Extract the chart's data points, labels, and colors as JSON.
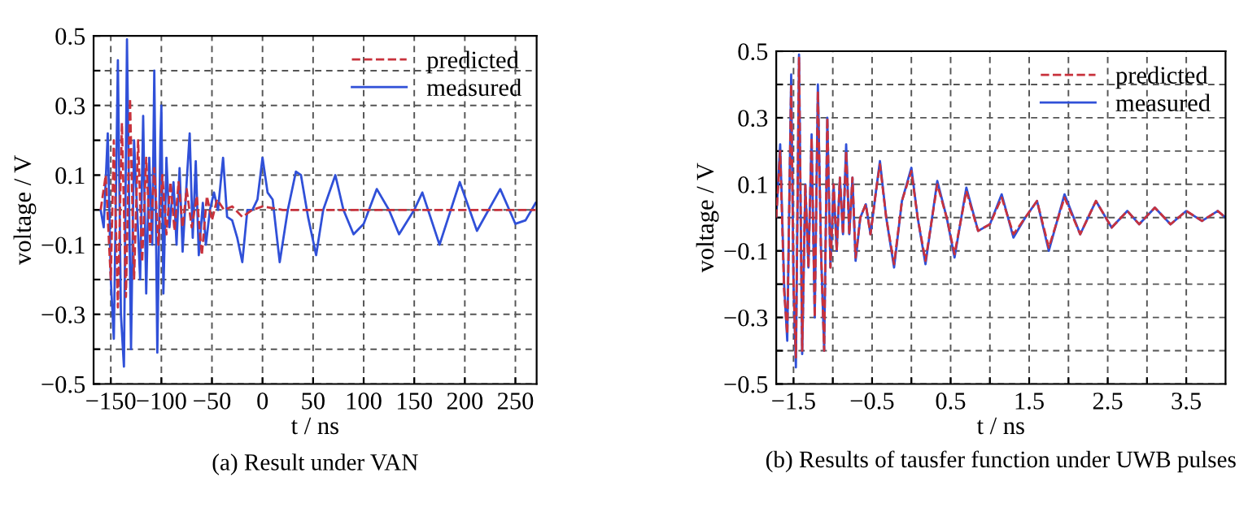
{
  "chart_data": [
    {
      "type": "line",
      "title": "(a) Result under VAN",
      "xlabel": "t / ns",
      "ylabel": "voltage / V",
      "xlim": [
        -167,
        271
      ],
      "xticks": [
        -150,
        -100,
        -50,
        0,
        50,
        100,
        150,
        200,
        250
      ],
      "ylim": [
        -0.5,
        0.5
      ],
      "yticks": [
        -0.5,
        {
          "value": -0.4,
          "label": null
        },
        -0.3,
        {
          "value": -0.2,
          "label": null
        },
        -0.1,
        {
          "value": 0,
          "label": null
        },
        0.1,
        {
          "value": 0.2,
          "label": null
        },
        0.3,
        {
          "value": 0.4,
          "label": null
        },
        0.5
      ],
      "grid": true,
      "legend": "top right",
      "series": [
        {
          "name": "predicted",
          "color": "#c8323c",
          "line_style": "dashed",
          "x": [
            -160,
            -155,
            -150,
            -147,
            -143,
            -139,
            -135,
            -131,
            -127,
            -123,
            -119,
            -115,
            -111,
            -107,
            -103,
            -99,
            -95,
            -91,
            -87,
            -83,
            -79,
            -75,
            -70,
            -65,
            -60,
            -55,
            -50,
            -45,
            -38,
            -30,
            -20,
            -10,
            0,
            20,
            50,
            100,
            200,
            270
          ],
          "values": [
            0.0,
            0.1,
            -0.2,
            0.2,
            -0.28,
            0.25,
            -0.25,
            0.32,
            -0.2,
            0.2,
            -0.15,
            0.15,
            -0.1,
            0.12,
            -0.1,
            0.1,
            -0.07,
            0.08,
            -0.06,
            0.08,
            -0.05,
            0.06,
            -0.05,
            0.04,
            -0.13,
            0.04,
            -0.03,
            0.03,
            0.0,
            0.01,
            -0.02,
            0.0,
            0.01,
            0.0,
            0.0,
            0.0,
            0.0,
            0.0
          ]
        },
        {
          "name": "measured",
          "color": "#3050d8",
          "line_style": "solid",
          "x": [
            -160,
            -157,
            -153,
            -150,
            -147,
            -143,
            -140,
            -137,
            -134,
            -130,
            -127,
            -124,
            -121,
            -118,
            -115,
            -112,
            -109,
            -107,
            -104,
            -101,
            -100,
            -98,
            -95,
            -92,
            -88,
            -85,
            -82,
            -79,
            -75,
            -72,
            -69,
            -66,
            -63,
            -59,
            -56,
            -52,
            -48,
            -44,
            -39,
            -35,
            -30,
            -25,
            -20,
            -15,
            -10,
            -5,
            0,
            5,
            10,
            17,
            25,
            33,
            38,
            45,
            53,
            60,
            72,
            80,
            90,
            100,
            113,
            125,
            135,
            150,
            158,
            175,
            195,
            212,
            235,
            250,
            260,
            270
          ],
          "values": [
            0.0,
            -0.05,
            0.22,
            -0.2,
            -0.37,
            0.43,
            -0.3,
            -0.45,
            0.49,
            -0.4,
            0.2,
            0.0,
            -0.2,
            0.27,
            -0.24,
            0.15,
            -0.1,
            0.4,
            -0.41,
            0.2,
            0.3,
            -0.24,
            0.15,
            -0.05,
            0.08,
            -0.1,
            0.12,
            -0.12,
            0.08,
            0.22,
            -0.08,
            0.14,
            -0.13,
            0.02,
            -0.1,
            0.0,
            0.05,
            0.0,
            0.15,
            -0.02,
            -0.03,
            -0.08,
            -0.15,
            0.0,
            0.0,
            0.03,
            0.15,
            0.05,
            0.03,
            -0.15,
            0.0,
            0.11,
            0.1,
            -0.02,
            -0.13,
            0.0,
            0.1,
            0.0,
            -0.07,
            -0.04,
            0.06,
            0.0,
            -0.07,
            0.0,
            0.05,
            -0.1,
            0.08,
            -0.06,
            0.06,
            -0.04,
            -0.03,
            0.02
          ]
        }
      ]
    },
    {
      "type": "line",
      "title": "(b) Results of tausfer function under UWB pulses",
      "xlabel": "t / ns",
      "ylabel": "voltage / V",
      "xlim": [
        -1.72,
        4.0
      ],
      "xticks": [
        -1.5,
        {
          "value": -1.0,
          "label": null
        },
        -0.5,
        {
          "value": 0.0,
          "label": null
        },
        0.5,
        {
          "value": 1.0,
          "label": null
        },
        1.5,
        {
          "value": 2.0,
          "label": null
        },
        2.5,
        {
          "value": 3.0,
          "label": null
        },
        3.5
      ],
      "ylim": [
        -0.5,
        0.5
      ],
      "yticks": [
        -0.5,
        {
          "value": -0.4,
          "label": null
        },
        -0.3,
        {
          "value": -0.2,
          "label": null
        },
        -0.1,
        {
          "value": 0,
          "label": null
        },
        0.1,
        {
          "value": 0.2,
          "label": null
        },
        0.3,
        {
          "value": 0.4,
          "label": null
        },
        0.5
      ],
      "grid": true,
      "legend": "top right",
      "series": [
        {
          "name": "predicted",
          "color": "#c8323c",
          "line_style": "dashed",
          "x": [
            -1.72,
            -1.67,
            -1.62,
            -1.58,
            -1.53,
            -1.5,
            -1.47,
            -1.43,
            -1.39,
            -1.35,
            -1.31,
            -1.27,
            -1.23,
            -1.19,
            -1.15,
            -1.11,
            -1.07,
            -1.03,
            -0.99,
            -0.95,
            -0.91,
            -0.87,
            -0.83,
            -0.79,
            -0.75,
            -0.71,
            -0.65,
            -0.58,
            -0.52,
            -0.45,
            -0.4,
            -0.32,
            -0.22,
            -0.12,
            0.0,
            0.08,
            0.18,
            0.33,
            0.45,
            0.55,
            0.7,
            0.85,
            1.0,
            1.15,
            1.3,
            1.45,
            1.6,
            1.75,
            1.95,
            2.15,
            2.35,
            2.55,
            2.75,
            2.9,
            3.1,
            3.3,
            3.5,
            3.7,
            3.9,
            4.0
          ],
          "values": [
            0.0,
            0.2,
            -0.22,
            -0.35,
            0.4,
            -0.2,
            -0.42,
            0.48,
            -0.4,
            0.1,
            -0.15,
            0.24,
            -0.3,
            0.38,
            -0.1,
            -0.4,
            0.3,
            -0.15,
            0.1,
            -0.1,
            0.12,
            -0.05,
            0.2,
            -0.05,
            0.12,
            -0.12,
            0.0,
            0.04,
            -0.05,
            0.08,
            0.16,
            0.0,
            -0.14,
            0.05,
            0.14,
            0.0,
            -0.13,
            0.1,
            0.0,
            -0.11,
            0.08,
            -0.04,
            -0.02,
            0.06,
            -0.05,
            0.0,
            0.05,
            -0.09,
            0.06,
            -0.05,
            0.05,
            -0.03,
            0.02,
            -0.02,
            0.03,
            -0.02,
            0.02,
            -0.01,
            0.02,
            0.0
          ]
        },
        {
          "name": "measured",
          "color": "#3050d8",
          "line_style": "solid",
          "x": [
            -1.72,
            -1.67,
            -1.62,
            -1.58,
            -1.53,
            -1.5,
            -1.47,
            -1.43,
            -1.39,
            -1.35,
            -1.31,
            -1.27,
            -1.23,
            -1.19,
            -1.15,
            -1.11,
            -1.07,
            -1.03,
            -0.99,
            -0.95,
            -0.91,
            -0.87,
            -0.83,
            -0.79,
            -0.75,
            -0.71,
            -0.65,
            -0.58,
            -0.52,
            -0.45,
            -0.4,
            -0.32,
            -0.22,
            -0.12,
            0.0,
            0.08,
            0.18,
            0.33,
            0.45,
            0.55,
            0.7,
            0.85,
            1.0,
            1.15,
            1.3,
            1.45,
            1.6,
            1.75,
            1.95,
            2.15,
            2.35,
            2.55,
            2.75,
            2.9,
            3.1,
            3.3,
            3.5,
            3.7,
            3.9,
            4.0
          ],
          "values": [
            0.0,
            0.22,
            -0.2,
            -0.37,
            0.43,
            -0.2,
            -0.45,
            0.49,
            -0.41,
            0.1,
            -0.15,
            0.25,
            -0.3,
            0.4,
            -0.1,
            -0.4,
            0.3,
            -0.15,
            0.1,
            -0.1,
            0.12,
            -0.05,
            0.22,
            -0.05,
            0.12,
            -0.13,
            0.0,
            0.04,
            -0.05,
            0.08,
            0.17,
            0.0,
            -0.15,
            0.05,
            0.15,
            0.0,
            -0.14,
            0.11,
            0.0,
            -0.12,
            0.09,
            -0.04,
            -0.02,
            0.07,
            -0.06,
            0.0,
            0.05,
            -0.1,
            0.07,
            -0.05,
            0.05,
            -0.03,
            0.02,
            -0.02,
            0.03,
            -0.02,
            0.02,
            -0.01,
            0.02,
            0.0
          ]
        }
      ]
    }
  ]
}
